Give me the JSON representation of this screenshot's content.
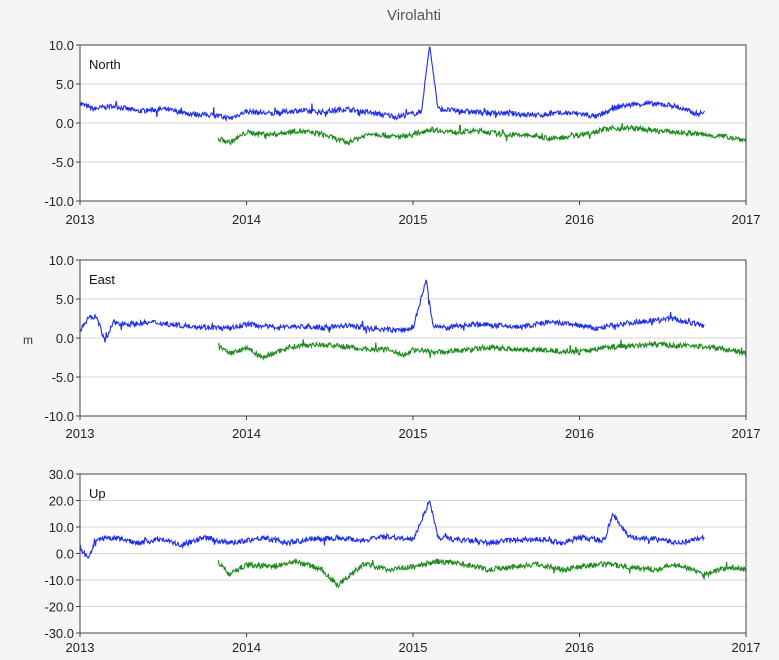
{
  "figure": {
    "title": "Virolahti",
    "ylabel_fragment": "m",
    "x_ticks": [
      "2013",
      "2014",
      "2015",
      "2016",
      "2017"
    ]
  },
  "colors": {
    "series_blue": "#1f2ee8",
    "series_green": "#1e8a1e",
    "frame": "#444444",
    "grid": "#d6d6d6",
    "background": "#ffffff"
  },
  "chart_data": [
    {
      "type": "line",
      "panel_label": "North",
      "xlim": [
        2013.0,
        2017.0
      ],
      "ylim": [
        -10.0,
        10.0
      ],
      "y_ticks": [
        "10.0",
        "5.0",
        "0.0",
        "-5.0",
        "-10.0"
      ],
      "grid": true,
      "series": [
        {
          "color": "blue",
          "x": [
            2013.0,
            2013.08,
            2013.2,
            2013.35,
            2013.5,
            2013.65,
            2013.8,
            2013.9,
            2014.0,
            2014.15,
            2014.3,
            2014.45,
            2014.6,
            2014.75,
            2014.9,
            2015.0,
            2015.05,
            2015.1,
            2015.15,
            2015.3,
            2015.45,
            2015.6,
            2015.75,
            2015.9,
            2016.0,
            2016.1,
            2016.25,
            2016.4,
            2016.55,
            2016.7,
            2016.75
          ],
          "y": [
            2.5,
            1.8,
            2.2,
            1.5,
            1.8,
            1.2,
            1.0,
            0.6,
            1.5,
            1.2,
            1.6,
            1.4,
            1.8,
            1.3,
            0.8,
            1.2,
            1.4,
            10.0,
            1.8,
            1.5,
            1.3,
            1.2,
            1.0,
            1.3,
            1.2,
            0.8,
            2.2,
            2.5,
            2.3,
            1.2,
            1.3
          ]
        },
        {
          "color": "green",
          "x": [
            2013.83,
            2013.9,
            2014.0,
            2014.15,
            2014.3,
            2014.45,
            2014.6,
            2014.75,
            2014.9,
            2015.0,
            2015.1,
            2015.25,
            2015.4,
            2015.55,
            2015.7,
            2015.85,
            2016.0,
            2016.15,
            2016.3,
            2016.45,
            2016.6,
            2016.75,
            2016.9,
            2017.0
          ],
          "y": [
            -2.0,
            -2.5,
            -1.2,
            -1.5,
            -1.0,
            -1.4,
            -2.5,
            -1.3,
            -1.8,
            -1.5,
            -0.8,
            -1.2,
            -1.0,
            -1.5,
            -1.6,
            -2.0,
            -1.5,
            -0.8,
            -0.6,
            -1.0,
            -1.2,
            -1.5,
            -1.8,
            -2.2
          ]
        }
      ]
    },
    {
      "type": "line",
      "panel_label": "East",
      "xlim": [
        2013.0,
        2017.0
      ],
      "ylim": [
        -10.0,
        10.0
      ],
      "y_ticks": [
        "10.0",
        "5.0",
        "0.0",
        "-5.0",
        "-10.0"
      ],
      "grid": true,
      "series": [
        {
          "color": "blue",
          "x": [
            2013.0,
            2013.05,
            2013.1,
            2013.15,
            2013.2,
            2013.3,
            2013.45,
            2013.6,
            2013.75,
            2013.9,
            2014.0,
            2014.15,
            2014.3,
            2014.45,
            2014.6,
            2014.75,
            2014.9,
            2015.0,
            2015.08,
            2015.12,
            2015.2,
            2015.35,
            2015.5,
            2015.65,
            2015.8,
            2015.95,
            2016.1,
            2016.25,
            2016.4,
            2016.55,
            2016.7,
            2016.75
          ],
          "y": [
            1.0,
            2.5,
            2.8,
            -0.5,
            2.0,
            1.8,
            2.0,
            1.6,
            1.4,
            1.2,
            1.8,
            1.4,
            1.5,
            1.3,
            1.6,
            1.2,
            1.0,
            1.2,
            7.5,
            1.5,
            1.3,
            1.8,
            1.6,
            1.4,
            2.0,
            1.8,
            1.2,
            1.8,
            2.2,
            2.5,
            1.8,
            1.6
          ]
        },
        {
          "color": "green",
          "x": [
            2013.83,
            2013.9,
            2014.0,
            2014.1,
            2014.25,
            2014.4,
            2014.55,
            2014.7,
            2014.85,
            2014.95,
            2015.0,
            2015.15,
            2015.3,
            2015.45,
            2015.6,
            2015.75,
            2015.9,
            2016.0,
            2016.15,
            2016.3,
            2016.45,
            2016.6,
            2016.75,
            2016.9,
            2017.0
          ],
          "y": [
            -1.0,
            -2.0,
            -1.2,
            -2.5,
            -1.2,
            -0.8,
            -1.0,
            -1.4,
            -1.5,
            -2.2,
            -1.5,
            -1.8,
            -1.6,
            -1.2,
            -1.4,
            -1.5,
            -1.7,
            -1.8,
            -1.2,
            -1.0,
            -0.8,
            -1.0,
            -1.1,
            -1.5,
            -2.0
          ]
        }
      ]
    },
    {
      "type": "line",
      "panel_label": "Up",
      "xlim": [
        2013.0,
        2017.0
      ],
      "ylim": [
        -30.0,
        30.0
      ],
      "y_ticks": [
        "30.0",
        "20.0",
        "10.0",
        "0.0",
        "-10.0",
        "-20.0",
        "-30.0"
      ],
      "grid": true,
      "series": [
        {
          "color": "blue",
          "x": [
            2013.0,
            2013.05,
            2013.1,
            2013.2,
            2013.35,
            2013.5,
            2013.6,
            2013.75,
            2013.9,
            2014.0,
            2014.1,
            2014.25,
            2014.4,
            2014.55,
            2014.7,
            2014.85,
            2015.0,
            2015.1,
            2015.15,
            2015.3,
            2015.45,
            2015.6,
            2015.75,
            2015.9,
            2016.0,
            2016.15,
            2016.2,
            2016.3,
            2016.45,
            2016.6,
            2016.75
          ],
          "y": [
            2.0,
            -2.0,
            5.0,
            6.0,
            4.0,
            5.5,
            3.0,
            6.0,
            4.0,
            5.0,
            6.0,
            4.0,
            5.5,
            6.0,
            5.0,
            6.5,
            5.0,
            20.0,
            6.0,
            5.0,
            4.0,
            5.0,
            5.5,
            4.0,
            6.0,
            5.0,
            15.0,
            6.0,
            5.5,
            4.0,
            6.0
          ]
        },
        {
          "color": "green",
          "x": [
            2013.83,
            2013.9,
            2014.0,
            2014.15,
            2014.3,
            2014.45,
            2014.55,
            2014.7,
            2014.85,
            2015.0,
            2015.15,
            2015.3,
            2015.45,
            2015.6,
            2015.75,
            2015.9,
            2016.0,
            2016.15,
            2016.3,
            2016.45,
            2016.6,
            2016.75,
            2016.9,
            2017.0
          ],
          "y": [
            -3.0,
            -8.0,
            -4.0,
            -5.0,
            -3.0,
            -6.0,
            -12.0,
            -4.0,
            -6.0,
            -5.0,
            -3.0,
            -4.0,
            -6.0,
            -5.0,
            -4.0,
            -6.0,
            -5.0,
            -4.0,
            -5.0,
            -6.0,
            -4.0,
            -8.0,
            -5.0,
            -6.0
          ]
        }
      ]
    }
  ]
}
